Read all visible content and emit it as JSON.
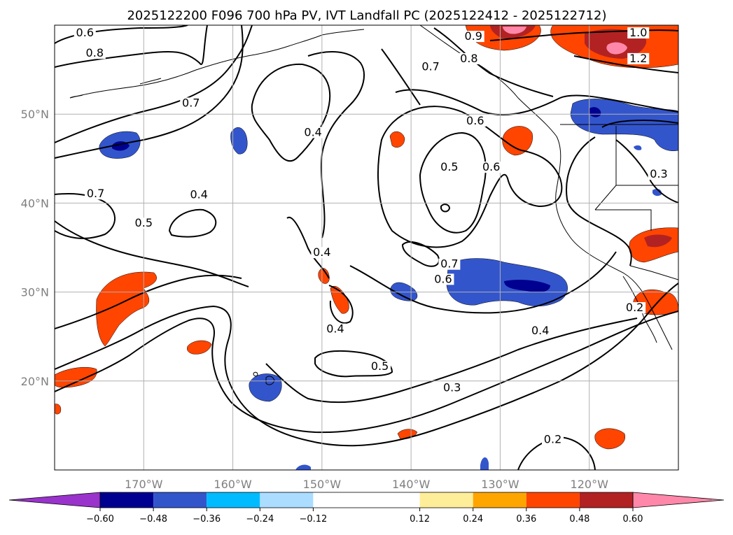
{
  "chart_data": {
    "type": "contour",
    "title": "2025122200 F096 700 hPa PV, IVT Landfall PC (2025122412 - 2025122712)",
    "xlabel": "",
    "ylabel": "",
    "xlim": [
      180,
      110
    ],
    "ylim": [
      10,
      60
    ],
    "grid": true,
    "x_ticks": [
      {
        "value": 170,
        "label": "170°W"
      },
      {
        "value": 160,
        "label": "160°W"
      },
      {
        "value": 150,
        "label": "150°W"
      },
      {
        "value": 140,
        "label": "140°W"
      },
      {
        "value": 130,
        "label": "130°W"
      },
      {
        "value": 120,
        "label": "120°W"
      }
    ],
    "y_ticks": [
      {
        "value": 20,
        "label": "20°N"
      },
      {
        "value": 30,
        "label": "30°N"
      },
      {
        "value": 40,
        "label": "40°N"
      },
      {
        "value": 50,
        "label": "50°N"
      }
    ],
    "colorbar": {
      "min": -0.72,
      "max": 0.72,
      "boundaries": [
        -0.72,
        -0.6,
        -0.48,
        -0.36,
        -0.24,
        -0.12,
        0.12,
        0.24,
        0.36,
        0.48,
        0.6,
        0.72
      ],
      "colors": [
        "#9933cc",
        "#000090",
        "#3355cc",
        "#00bbff",
        "#aaddff",
        "#ffffff",
        "#ffee99",
        "#ffa500",
        "#ff4500",
        "#b22222",
        "#ff88aa"
      ],
      "extend": "both",
      "tick_labels": [
        {
          "value": -0.6,
          "label": "−0.60"
        },
        {
          "value": -0.48,
          "label": "−0.48"
        },
        {
          "value": -0.36,
          "label": "−0.36"
        },
        {
          "value": -0.24,
          "label": "−0.24"
        },
        {
          "value": -0.12,
          "label": "−0.12"
        },
        {
          "value": 0.12,
          "label": "0.12"
        },
        {
          "value": 0.24,
          "label": "0.24"
        },
        {
          "value": 0.36,
          "label": "0.36"
        },
        {
          "value": 0.48,
          "label": "0.48"
        },
        {
          "value": 0.6,
          "label": "0.60"
        }
      ]
    },
    "contour_labels": [
      {
        "text": "0.6",
        "lon": 176.6,
        "lat": 58.9
      },
      {
        "text": "0.8",
        "lon": 175.5,
        "lat": 56.6
      },
      {
        "text": "0.7",
        "lon": 164.7,
        "lat": 51.0
      },
      {
        "text": "0.7",
        "lon": 175.4,
        "lat": 40.8
      },
      {
        "text": "0.5",
        "lon": 170.0,
        "lat": 37.5
      },
      {
        "text": "0.4",
        "lon": 163.8,
        "lat": 40.7
      },
      {
        "text": "0.4",
        "lon": 151.0,
        "lat": 47.7
      },
      {
        "text": "0.4",
        "lon": 150.0,
        "lat": 34.2
      },
      {
        "text": "0.4",
        "lon": 148.5,
        "lat": 25.6
      },
      {
        "text": "0.5",
        "lon": 143.5,
        "lat": 21.4
      },
      {
        "text": "0.3",
        "lon": 135.4,
        "lat": 19.0
      },
      {
        "text": "0.4",
        "lon": 125.5,
        "lat": 25.4
      },
      {
        "text": "0.2",
        "lon": 124.1,
        "lat": 13.2
      },
      {
        "text": "0.5",
        "lon": 135.7,
        "lat": 43.8
      },
      {
        "text": "0.6",
        "lon": 132.8,
        "lat": 49.0
      },
      {
        "text": "0.6",
        "lon": 131.0,
        "lat": 43.8
      },
      {
        "text": "0.7",
        "lon": 135.7,
        "lat": 32.9
      },
      {
        "text": "0.6",
        "lon": 136.4,
        "lat": 31.2
      },
      {
        "text": "0.7",
        "lon": 137.8,
        "lat": 55.1
      },
      {
        "text": "0.8",
        "lon": 133.5,
        "lat": 56.0
      },
      {
        "text": "0.9",
        "lon": 133.0,
        "lat": 58.5
      },
      {
        "text": "1.0",
        "lon": 114.5,
        "lat": 58.9
      },
      {
        "text": "1.2",
        "lon": 114.5,
        "lat": 56.0
      },
      {
        "text": "0.3",
        "lon": 112.2,
        "lat": 43.0
      },
      {
        "text": "0.2",
        "lon": 114.9,
        "lat": 28.0
      }
    ]
  }
}
